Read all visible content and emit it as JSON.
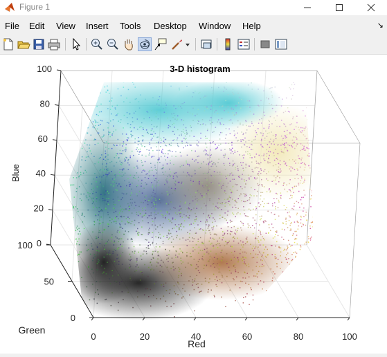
{
  "window": {
    "title": "Figure 1",
    "controls": {
      "minimize": "—",
      "maximize": "☐",
      "close": "✕"
    }
  },
  "menu": {
    "items": [
      "File",
      "Edit",
      "View",
      "Insert",
      "Tools",
      "Desktop",
      "Window",
      "Help"
    ],
    "overflow": "↘"
  },
  "toolbar": {
    "buttons": [
      "new-figure",
      "open-file",
      "save-figure",
      "print-figure",
      "edit-plot",
      "zoom-in",
      "zoom-out",
      "pan",
      "rotate-3d",
      "data-cursor",
      "brush",
      "brush-dropdown",
      "link-plot",
      "insert-colorbar",
      "insert-legend",
      "hide-plot-tools",
      "show-plot-tools"
    ],
    "active": "rotate-3d"
  },
  "chart_data": {
    "type": "scatter",
    "title": "3-D histogram",
    "xlabel": "Red",
    "ylabel": "Green",
    "zlabel": "Blue",
    "xlim": [
      0,
      100
    ],
    "ylim": [
      0,
      100
    ],
    "zlim": [
      0,
      100
    ],
    "x_ticks": [
      "0",
      "20",
      "40",
      "60",
      "80",
      "100"
    ],
    "y_ticks": [
      "0",
      "50",
      "100"
    ],
    "z_ticks": [
      "0",
      "20",
      "40",
      "60",
      "80",
      "100"
    ],
    "grid": true,
    "description_colors": [
      "#1a1a1a",
      "#2fb6c4",
      "#c08040",
      "#e8e0b0"
    ]
  }
}
